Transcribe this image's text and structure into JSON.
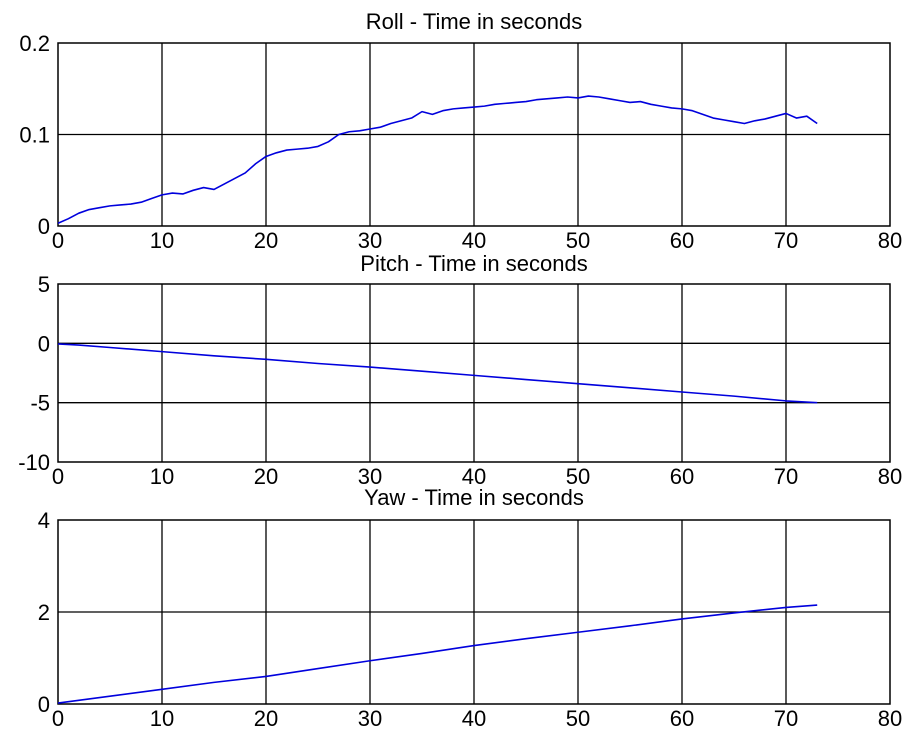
{
  "colors": {
    "series": "#0000dd",
    "axes": "#000000",
    "background": "#ffffff"
  },
  "chart_data": [
    {
      "type": "line",
      "title": "Roll - Time in seconds",
      "xlabel": "",
      "ylabel": "",
      "xlim": [
        0,
        80
      ],
      "ylim": [
        0,
        0.2
      ],
      "xticks": [
        0,
        10,
        20,
        30,
        40,
        50,
        60,
        70,
        80
      ],
      "yticks": [
        0,
        0.1,
        0.2
      ],
      "xtick_labels": [
        "0",
        "10",
        "20",
        "30",
        "40",
        "50",
        "60",
        "70",
        "80"
      ],
      "ytick_labels": [
        "0",
        "0.1",
        "0.2"
      ],
      "grid": true,
      "series": [
        {
          "x": [
            0,
            1,
            2,
            3,
            4,
            5,
            6,
            7,
            8,
            9,
            10,
            11,
            12,
            13,
            14,
            15,
            16,
            17,
            18,
            19,
            20,
            21,
            22,
            23,
            24,
            25,
            26,
            27,
            28,
            29,
            30,
            31,
            32,
            33,
            34,
            35,
            36,
            37,
            38,
            39,
            40,
            41,
            42,
            43,
            44,
            45,
            46,
            47,
            48,
            49,
            50,
            51,
            52,
            53,
            54,
            55,
            56,
            57,
            58,
            59,
            60,
            61,
            62,
            63,
            64,
            65,
            66,
            67,
            68,
            69,
            70,
            71,
            72,
            73
          ],
          "y": [
            0.003,
            0.008,
            0.014,
            0.018,
            0.02,
            0.022,
            0.023,
            0.024,
            0.026,
            0.03,
            0.034,
            0.036,
            0.035,
            0.039,
            0.042,
            0.04,
            0.046,
            0.052,
            0.058,
            0.068,
            0.076,
            0.08,
            0.083,
            0.084,
            0.085,
            0.087,
            0.092,
            0.1,
            0.103,
            0.104,
            0.106,
            0.108,
            0.112,
            0.115,
            0.118,
            0.125,
            0.122,
            0.126,
            0.128,
            0.129,
            0.13,
            0.131,
            0.133,
            0.134,
            0.135,
            0.136,
            0.138,
            0.139,
            0.14,
            0.141,
            0.14,
            0.142,
            0.141,
            0.139,
            0.137,
            0.135,
            0.136,
            0.133,
            0.131,
            0.129,
            0.128,
            0.126,
            0.122,
            0.118,
            0.116,
            0.114,
            0.112,
            0.115,
            0.117,
            0.12,
            0.123,
            0.118,
            0.12,
            0.112
          ]
        }
      ]
    },
    {
      "type": "line",
      "title": "Pitch - Time in seconds",
      "xlabel": "",
      "ylabel": "",
      "xlim": [
        0,
        80
      ],
      "ylim": [
        -10,
        5
      ],
      "xticks": [
        0,
        10,
        20,
        30,
        40,
        50,
        60,
        70,
        80
      ],
      "yticks": [
        -10,
        -5,
        0,
        5
      ],
      "xtick_labels": [
        "0",
        "10",
        "20",
        "30",
        "40",
        "50",
        "60",
        "70",
        "80"
      ],
      "ytick_labels": [
        "-10",
        "-5",
        "0",
        "5"
      ],
      "grid": true,
      "series": [
        {
          "x": [
            0,
            2,
            5,
            10,
            15,
            20,
            25,
            30,
            35,
            40,
            45,
            50,
            55,
            60,
            65,
            70,
            73
          ],
          "y": [
            -0.05,
            -0.15,
            -0.35,
            -0.7,
            -1.05,
            -1.35,
            -1.7,
            -2.0,
            -2.35,
            -2.7,
            -3.05,
            -3.4,
            -3.75,
            -4.1,
            -4.45,
            -4.85,
            -5.0
          ]
        }
      ]
    },
    {
      "type": "line",
      "title": "Yaw - Time in seconds",
      "xlabel": "",
      "ylabel": "",
      "xlim": [
        0,
        80
      ],
      "ylim": [
        0,
        4
      ],
      "xticks": [
        0,
        10,
        20,
        30,
        40,
        50,
        60,
        70,
        80
      ],
      "yticks": [
        0,
        2,
        4
      ],
      "xtick_labels": [
        "0",
        "10",
        "20",
        "30",
        "40",
        "50",
        "60",
        "70",
        "80"
      ],
      "ytick_labels": [
        "0",
        "2",
        "4"
      ],
      "grid": true,
      "series": [
        {
          "x": [
            0,
            2,
            5,
            10,
            15,
            20,
            25,
            30,
            35,
            40,
            45,
            50,
            55,
            60,
            65,
            70,
            73
          ],
          "y": [
            0.02,
            0.08,
            0.17,
            0.32,
            0.47,
            0.6,
            0.77,
            0.94,
            1.1,
            1.27,
            1.42,
            1.56,
            1.7,
            1.85,
            1.98,
            2.1,
            2.15
          ]
        }
      ]
    }
  ]
}
